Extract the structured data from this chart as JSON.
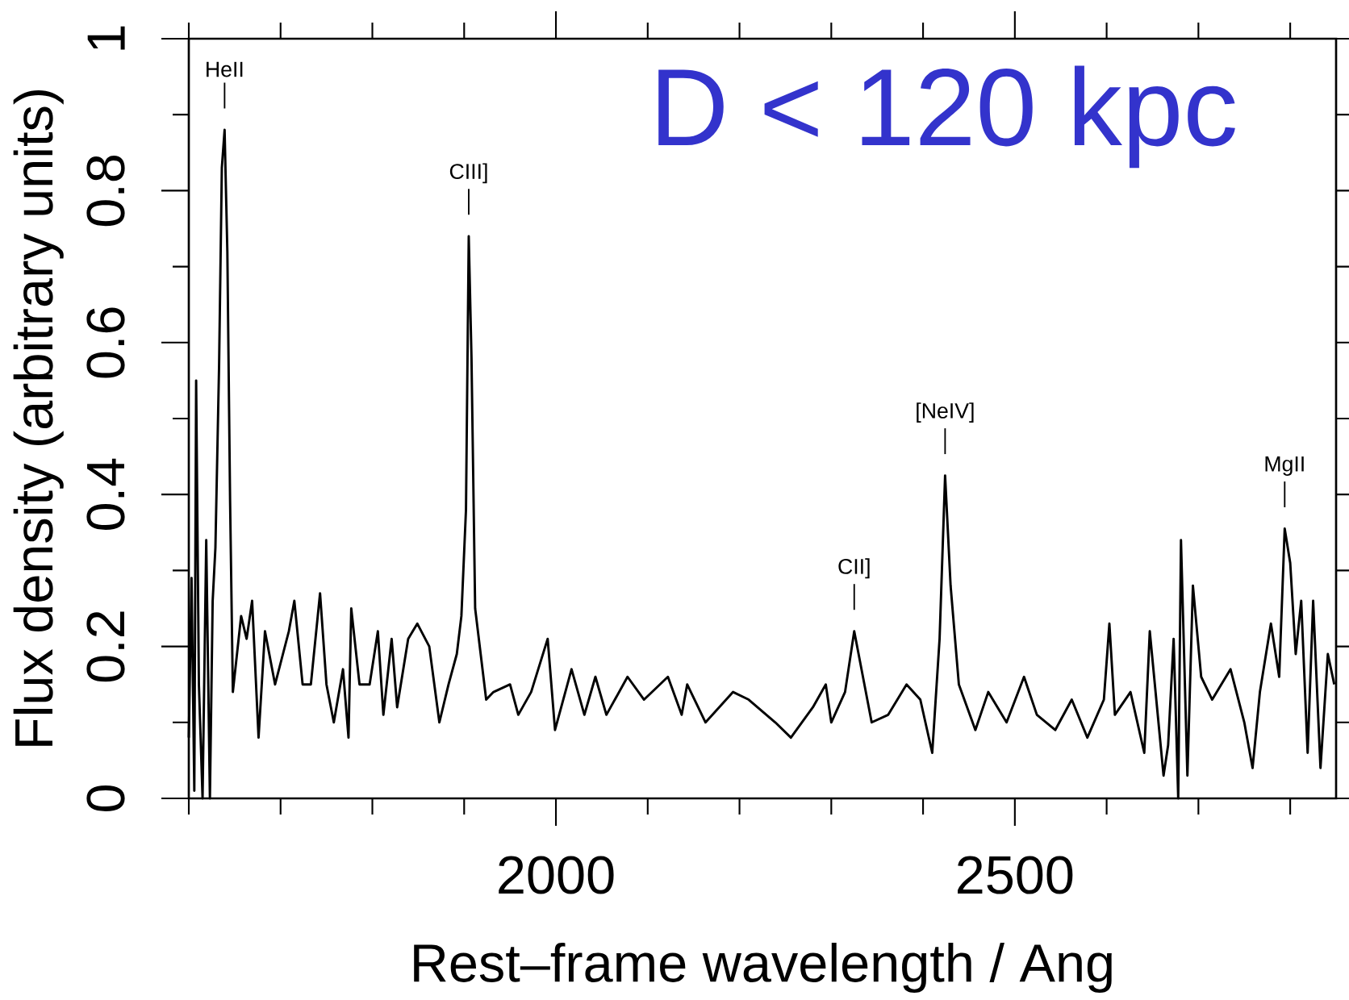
{
  "chart_data": {
    "type": "line",
    "xlabel": "Rest–frame wavelength / Ang",
    "ylabel": "Flux density (arbitrary units)",
    "xlim": [
      1600,
      2850
    ],
    "ylim": [
      0,
      1
    ],
    "xticks": [
      {
        "value": 1600,
        "label": null
      },
      {
        "value": 1700,
        "label": null
      },
      {
        "value": 1800,
        "label": null
      },
      {
        "value": 1900,
        "label": null
      },
      2000,
      {
        "value": 2100,
        "label": null
      },
      {
        "value": 2200,
        "label": null
      },
      {
        "value": 2300,
        "label": null
      },
      {
        "value": 2400,
        "label": null
      },
      2500,
      {
        "value": 2600,
        "label": null
      },
      {
        "value": 2700,
        "label": null
      },
      {
        "value": 2800,
        "label": null
      }
    ],
    "yticks": [
      0,
      {
        "value": 0.1,
        "label": null
      },
      0.2,
      {
        "value": 0.3,
        "label": null
      },
      0.4,
      {
        "value": 0.5,
        "label": null
      },
      0.6,
      {
        "value": 0.7,
        "label": null
      },
      0.8,
      {
        "value": 0.9,
        "label": null
      },
      1
    ],
    "grid": false,
    "marker": "none",
    "line_style": "solid",
    "annotations": [
      {
        "text": "HeII",
        "x": 1639,
        "y": 0.88
      },
      {
        "text": "CIII]",
        "x": 1905,
        "y": 0.74
      },
      {
        "text": "CII]",
        "x": 2325,
        "y": 0.22
      },
      {
        "text": "[NeIV]",
        "x": 2424,
        "y": 0.425
      },
      {
        "text": "MgII",
        "x": 2794,
        "y": 0.355
      },
      "D < 120 kpc"
    ],
    "series": [
      {
        "color": "#000000",
        "x": [
          1600,
          1603,
          1606,
          1608,
          1611,
          1615,
          1619,
          1623,
          1626,
          1629,
          1633,
          1636,
          1639,
          1642,
          1645,
          1648,
          1657,
          1663,
          1669,
          1676,
          1683,
          1694,
          1709,
          1715,
          1724,
          1733,
          1743,
          1750,
          1758,
          1768,
          1774,
          1777,
          1786,
          1797,
          1806,
          1812,
          1821,
          1827,
          1839,
          1849,
          1862,
          1873,
          1883,
          1892,
          1897,
          1902,
          1905,
          1908,
          1912,
          1918,
          1924,
          1932,
          1950,
          1959,
          1973,
          1991,
          1999,
          2017,
          2031,
          2043,
          2055,
          2078,
          2096,
          2122,
          2137,
          2143,
          2163,
          2193,
          2210,
          2239,
          2256,
          2280,
          2294,
          2300,
          2315,
          2325,
          2344,
          2362,
          2382,
          2397,
          2410,
          2418,
          2424,
          2430,
          2439,
          2457,
          2471,
          2491,
          2510,
          2524,
          2544,
          2562,
          2579,
          2597,
          2603,
          2609,
          2626,
          2641,
          2647,
          2662,
          2667,
          2673,
          2678,
          2681,
          2688,
          2694,
          2703,
          2715,
          2735,
          2750,
          2759,
          2767,
          2779,
          2788,
          2794,
          2800,
          2806,
          2812,
          2819,
          2825,
          2833,
          2841,
          2848
        ],
        "values": [
          0.08,
          0.29,
          0.01,
          0.55,
          0.15,
          0.0,
          0.34,
          0.0,
          0.26,
          0.33,
          0.57,
          0.83,
          0.88,
          0.72,
          0.39,
          0.14,
          0.24,
          0.21,
          0.26,
          0.08,
          0.22,
          0.15,
          0.22,
          0.26,
          0.15,
          0.15,
          0.27,
          0.15,
          0.1,
          0.17,
          0.08,
          0.25,
          0.15,
          0.15,
          0.22,
          0.11,
          0.21,
          0.12,
          0.21,
          0.23,
          0.2,
          0.1,
          0.15,
          0.19,
          0.24,
          0.38,
          0.74,
          0.58,
          0.25,
          0.19,
          0.13,
          0.14,
          0.15,
          0.11,
          0.14,
          0.21,
          0.09,
          0.17,
          0.11,
          0.16,
          0.11,
          0.16,
          0.13,
          0.16,
          0.11,
          0.15,
          0.1,
          0.14,
          0.13,
          0.1,
          0.08,
          0.12,
          0.15,
          0.1,
          0.14,
          0.22,
          0.1,
          0.11,
          0.15,
          0.13,
          0.06,
          0.21,
          0.425,
          0.28,
          0.15,
          0.09,
          0.14,
          0.1,
          0.16,
          0.11,
          0.09,
          0.13,
          0.08,
          0.13,
          0.23,
          0.11,
          0.14,
          0.06,
          0.22,
          0.03,
          0.07,
          0.21,
          0.0,
          0.34,
          0.03,
          0.28,
          0.16,
          0.13,
          0.17,
          0.1,
          0.04,
          0.14,
          0.23,
          0.16,
          0.355,
          0.31,
          0.19,
          0.26,
          0.06,
          0.26,
          0.04,
          0.19,
          0.15
        ]
      }
    ]
  }
}
